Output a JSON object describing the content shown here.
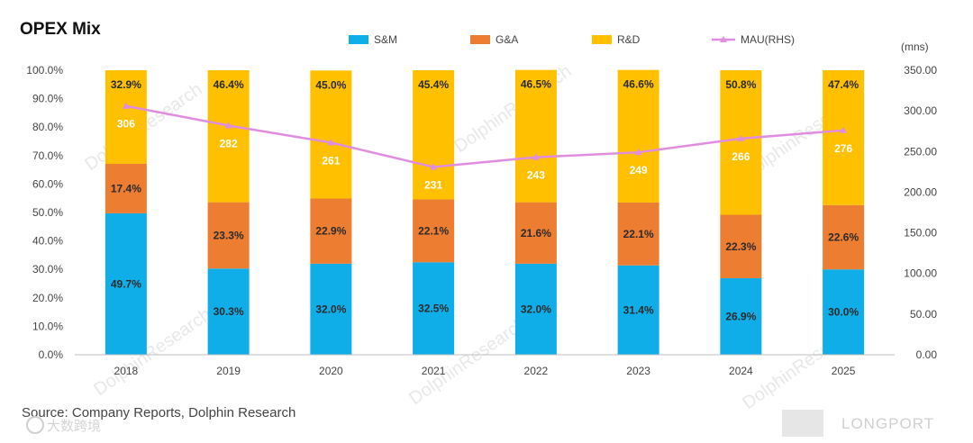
{
  "title": "OPEX Mix",
  "unit_label": "(mns)",
  "source": "Source: Company Reports, Dolphin Research",
  "watermark": "DolphinResearch",
  "footer_brand": "LONGPORT",
  "footer_logo_text": "大数跨境",
  "colors": {
    "sm": "#10aee8",
    "ga": "#ed7d31",
    "rd": "#ffc000",
    "mau": "#e08de0"
  },
  "chart_data": {
    "type": "bar",
    "stacked": true,
    "categories": [
      "2018",
      "2019",
      "2020",
      "2021",
      "2022",
      "2023",
      "2024",
      "2025"
    ],
    "series": [
      {
        "name": "S&M",
        "values": [
          49.7,
          30.3,
          32.0,
          32.5,
          32.0,
          31.4,
          26.9,
          30.0
        ],
        "labels": [
          "49.7%",
          "30.3%",
          "32.0%",
          "32.5%",
          "32.0%",
          "31.4%",
          "26.9%",
          "30.0%"
        ]
      },
      {
        "name": "G&A",
        "values": [
          17.4,
          23.3,
          22.9,
          22.1,
          21.6,
          22.1,
          22.3,
          22.6
        ],
        "labels": [
          "17.4%",
          "23.3%",
          "22.9%",
          "22.1%",
          "21.6%",
          "22.1%",
          "22.3%",
          "22.6%"
        ]
      },
      {
        "name": "R&D",
        "values": [
          32.9,
          46.4,
          45.0,
          45.4,
          46.5,
          46.6,
          50.8,
          47.4
        ],
        "labels": [
          "32.9%",
          "46.4%",
          "45.0%",
          "45.4%",
          "46.5%",
          "46.6%",
          "50.8%",
          "47.4%"
        ]
      }
    ],
    "line_series": {
      "name": "MAU(RHS)",
      "type": "line",
      "values": [
        306,
        282,
        261,
        231,
        243,
        249,
        266,
        276
      ]
    },
    "y_left": {
      "min": 0,
      "max": 100,
      "ticks": [
        "0.0%",
        "10.0%",
        "20.0%",
        "30.0%",
        "40.0%",
        "50.0%",
        "60.0%",
        "70.0%",
        "80.0%",
        "90.0%",
        "100.0%"
      ]
    },
    "y_right": {
      "min": 0,
      "max": 350,
      "ticks": [
        "0.00",
        "50.00",
        "100.00",
        "150.00",
        "200.00",
        "250.00",
        "300.00",
        "350.00"
      ]
    },
    "legend": [
      "S&M",
      "G&A",
      "R&D",
      "MAU(RHS)"
    ],
    "legend_position": "top"
  }
}
